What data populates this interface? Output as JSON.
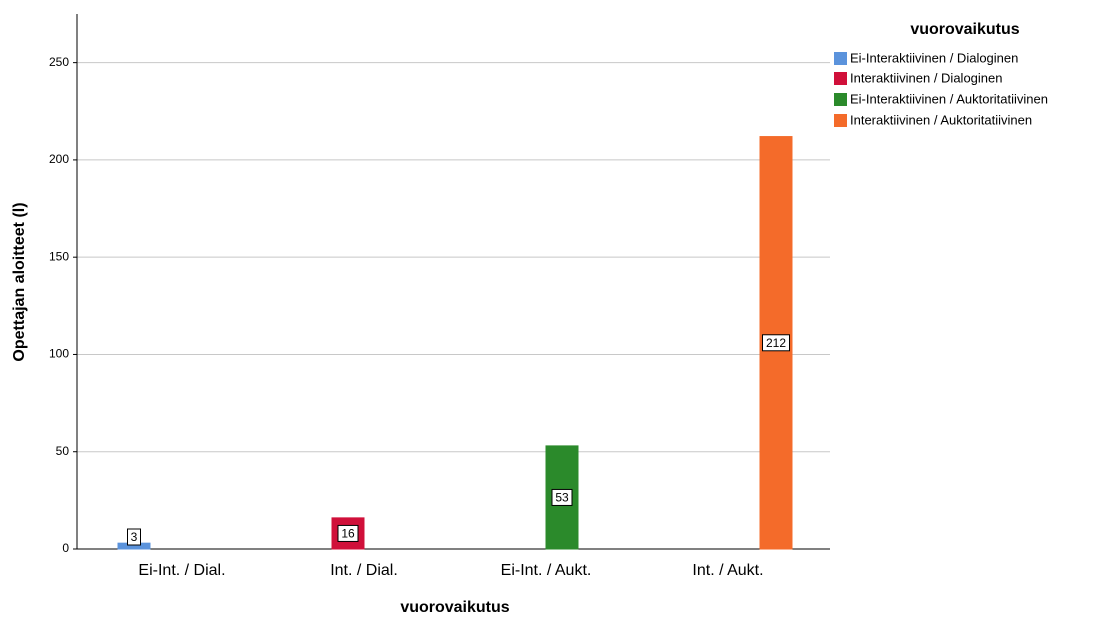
{
  "chart_data": {
    "type": "bar",
    "x_label": "vuorovaikutus",
    "y_label": "Opettajan aloitteet (l)",
    "legend_title": "vuorovaikutus",
    "legend_position": "right",
    "grid": true,
    "categories": [
      "Ei-Int. / Dial.",
      "Int. / Dial.",
      "Ei-Int. / Aukt.",
      "Int. / Aukt."
    ],
    "series": [
      {
        "name": "Ei-Interaktiivinen / Dialoginen",
        "color": "#5b93dc",
        "values": [
          3,
          null,
          null,
          null
        ]
      },
      {
        "name": "Interaktiivinen / Dialoginen",
        "color": "#d0103a",
        "values": [
          null,
          16,
          null,
          null
        ]
      },
      {
        "name": "Ei-Interaktiivinen / Auktoritatiivinen",
        "color": "#2b8a2b",
        "values": [
          null,
          null,
          53,
          null
        ]
      },
      {
        "name": "Interaktiivinen / Auktoritatiivinen",
        "color": "#f46b2a",
        "values": [
          null,
          null,
          null,
          212
        ]
      }
    ],
    "ylim": [
      0,
      275
    ],
    "yticks": [
      0,
      50,
      100,
      150,
      200,
      250
    ]
  }
}
